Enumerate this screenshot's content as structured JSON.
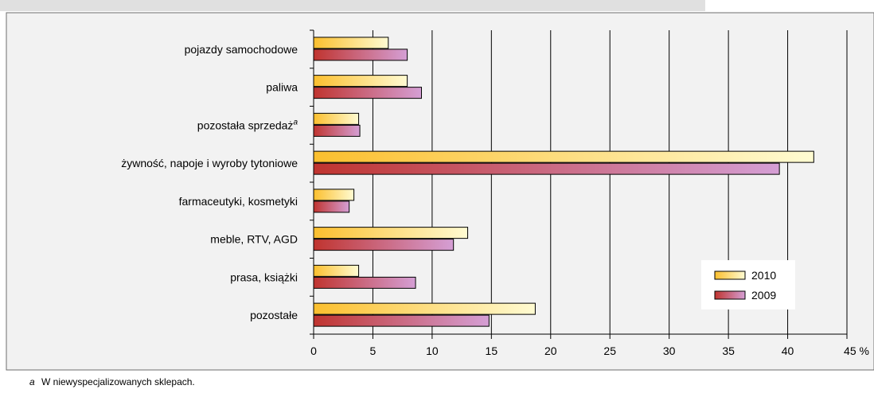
{
  "chart_data": {
    "type": "bar",
    "orientation": "horizontal",
    "categories": [
      "pojazdy samochodowe",
      "paliwa",
      "pozostała sprzedaż",
      "żywność, napoje i wyroby  tytoniowe",
      "farmaceutyki, kosmetyki",
      "meble, RTV, AGD",
      "prasa, książki",
      "pozostałe"
    ],
    "category_superscripts": [
      "",
      "",
      "a",
      "",
      "",
      "",
      "",
      ""
    ],
    "series": [
      {
        "name": "2010",
        "values": [
          6.3,
          7.9,
          3.8,
          42.2,
          3.4,
          13.0,
          3.8,
          18.7
        ],
        "color": "#fbd45a"
      },
      {
        "name": "2009",
        "values": [
          7.9,
          9.1,
          3.9,
          39.3,
          3.0,
          11.8,
          8.6,
          14.8
        ],
        "color": "#c0505d"
      }
    ],
    "xlim": [
      0,
      45
    ],
    "xticks": [
      "0",
      "5",
      "10",
      "15",
      "20",
      "25",
      "30",
      "35",
      "40",
      "45 %"
    ],
    "grid": true,
    "legend_position": "bottom-right",
    "title": "",
    "xlabel": "",
    "ylabel": ""
  },
  "footnote": {
    "marker": "a",
    "text": "W niewyspecjalizowanych sklepach."
  },
  "colors": {
    "header_band": "#e0e0e0",
    "plot_background": "#f2f2f2",
    "grid": "#000000",
    "bar_2010_light": "#fffbd2",
    "bar_2010_dark": "#fbbf2e",
    "bar_2009_light": "#d59fd5",
    "bar_2009_dark": "#c0342f"
  }
}
